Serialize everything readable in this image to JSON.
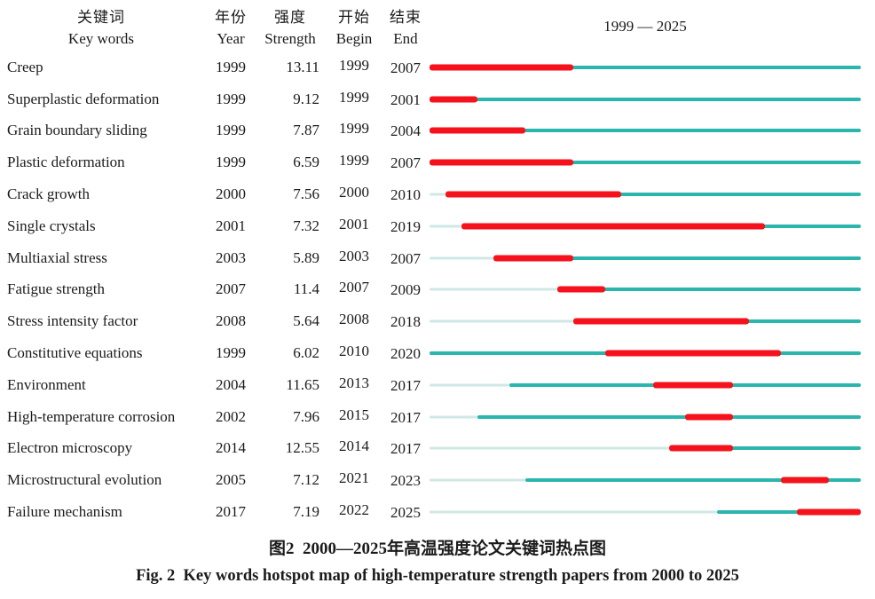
{
  "caption": {
    "zh": "图2  2000—2025年高温强度论文关键词热点图",
    "en": "Fig. 2  Key words hotspot map of high-temperature strength papers from 2000 to 2025"
  },
  "chart_data": {
    "type": "table",
    "title": "Key words burst (hotspot) map, 1999 — 2025",
    "timeline": {
      "start": 1999,
      "end": 2025,
      "label": "1999 — 2025"
    },
    "columns": [
      {
        "zh": "关键词",
        "en": "Key words"
      },
      {
        "zh": "年份",
        "en": "Year"
      },
      {
        "zh": "强度",
        "en": "Strength"
      },
      {
        "zh": "开始",
        "en": "Begin"
      },
      {
        "zh": "结束",
        "en": "End"
      }
    ],
    "legend": {
      "burst_segment": "red: burst period (Begin–End)",
      "active_segment": "teal: years after first appearance",
      "inactive_segment": "pale teal: years before first appearance"
    },
    "colors": {
      "burst": "#f6121c",
      "active": "#2ab5ad",
      "inactive": "#cfe8e6"
    },
    "rows": [
      {
        "keyword": "Creep",
        "year": 1999,
        "strength": "13.11",
        "begin": 1999,
        "end": 2007
      },
      {
        "keyword": "Superplastic deformation",
        "year": 1999,
        "strength": "9.12",
        "begin": 1999,
        "end": 2001
      },
      {
        "keyword": "Grain boundary sliding",
        "year": 1999,
        "strength": "7.87",
        "begin": 1999,
        "end": 2004
      },
      {
        "keyword": "Plastic deformation",
        "year": 1999,
        "strength": "6.59",
        "begin": 1999,
        "end": 2007
      },
      {
        "keyword": "Crack growth",
        "year": 2000,
        "strength": "7.56",
        "begin": 2000,
        "end": 2010
      },
      {
        "keyword": "Single crystals",
        "year": 2001,
        "strength": "7.32",
        "begin": 2001,
        "end": 2019
      },
      {
        "keyword": "Multiaxial stress",
        "year": 2003,
        "strength": "5.89",
        "begin": 2003,
        "end": 2007
      },
      {
        "keyword": "Fatigue strength",
        "year": 2007,
        "strength": "11.4",
        "begin": 2007,
        "end": 2009
      },
      {
        "keyword": "Stress intensity factor",
        "year": 2008,
        "strength": "5.64",
        "begin": 2008,
        "end": 2018
      },
      {
        "keyword": "Constitutive equations",
        "year": 1999,
        "strength": "6.02",
        "begin": 2010,
        "end": 2020
      },
      {
        "keyword": "Environment",
        "year": 2004,
        "strength": "11.65",
        "begin": 2013,
        "end": 2017
      },
      {
        "keyword": "High-temperature corrosion",
        "year": 2002,
        "strength": "7.96",
        "begin": 2015,
        "end": 2017
      },
      {
        "keyword": "Electron microscopy",
        "year": 2014,
        "strength": "12.55",
        "begin": 2014,
        "end": 2017
      },
      {
        "keyword": "Microstructural evolution",
        "year": 2005,
        "strength": "7.12",
        "begin": 2021,
        "end": 2023
      },
      {
        "keyword": "Failure mechanism",
        "year": 2017,
        "strength": "7.19",
        "begin": 2022,
        "end": 2025
      }
    ]
  }
}
